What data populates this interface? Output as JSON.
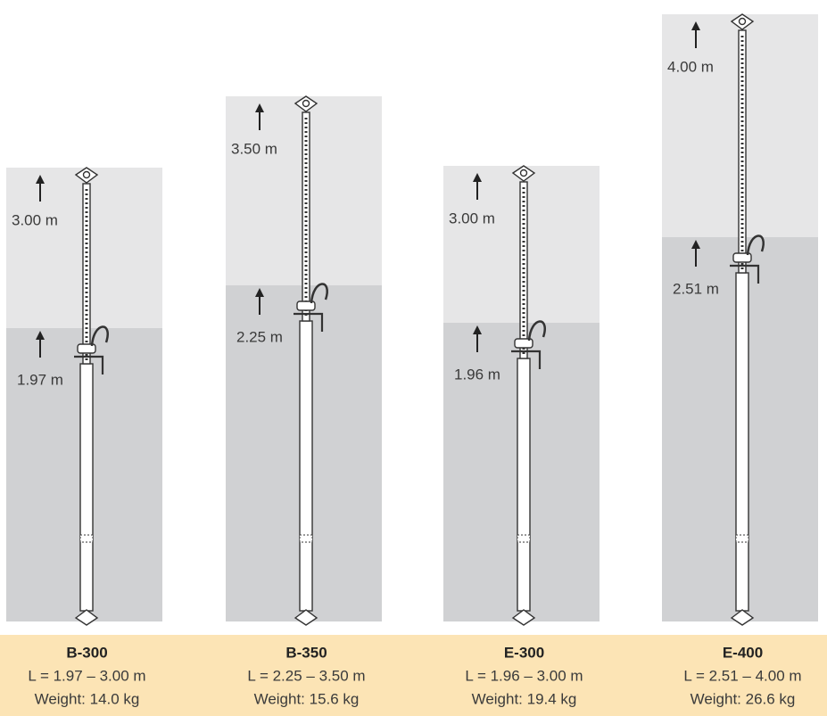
{
  "props": [
    {
      "name": "B-300",
      "range": "L = 1.97 – 3.00 m",
      "weight": "Weight: 14.0 kg",
      "max_label": "3.00 m",
      "min_label": "1.97 m"
    },
    {
      "name": "B-350",
      "range": "L = 2.25 – 3.50 m",
      "weight": "Weight: 15.6 kg",
      "max_label": "3.50 m",
      "min_label": "2.25 m"
    },
    {
      "name": "E-300",
      "range": "L = 1.96 – 3.00 m",
      "weight": "Weight: 19.4 kg",
      "max_label": "3.00 m",
      "min_label": "1.96 m"
    },
    {
      "name": "E-400",
      "range": "L = 2.51 – 4.00 m",
      "weight": "Weight: 26.6 kg",
      "max_label": "4.00 m",
      "min_label": "2.51 m"
    }
  ]
}
